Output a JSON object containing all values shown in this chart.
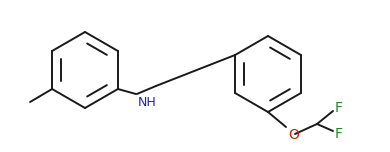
{
  "bg_color": "#ffffff",
  "line_color": "#1a1a1a",
  "nh_color": "#2222aa",
  "o_color": "#cc2200",
  "f_color": "#228822",
  "line_width": 1.4,
  "figsize": [
    3.9,
    1.52
  ],
  "dpi": 100,
  "xlim": [
    0,
    390
  ],
  "ylim": [
    0,
    152
  ]
}
